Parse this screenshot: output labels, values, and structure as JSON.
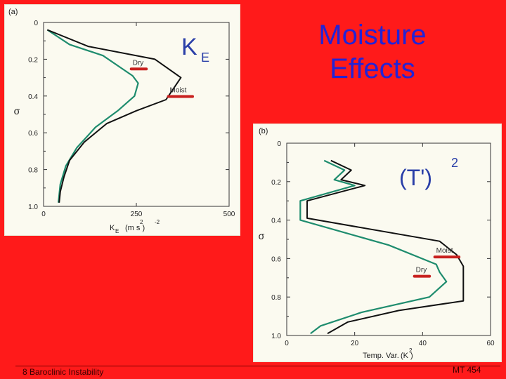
{
  "slide": {
    "title_line1": "Moisture",
    "title_line2": "Effects",
    "footer_left": "8 Baroclinic Instability",
    "footer_right": "MT 454"
  },
  "colors": {
    "background": "#ff1a1a",
    "title": "#2323d6",
    "panel": "#fbfaf0",
    "dry_line": "#1e8c6e",
    "moist_line": "#111111",
    "label_underline": "#c8201e",
    "handwriting": "#2a3fa8"
  },
  "chart_data": [
    {
      "type": "line",
      "panel_label": "(a)",
      "handwritten_label": "K",
      "handwritten_sub": "E",
      "xlabel": "K",
      "xlabel_sub": "E",
      "xlabel_units": "(m  s  )",
      "xlabel_exp1": "2",
      "xlabel_exp2": "-2",
      "ylabel": "σ",
      "xlim": [
        0,
        500
      ],
      "ylim": [
        0,
        1.0
      ],
      "y_inverted": true,
      "x_ticks": [
        0,
        250,
        500
      ],
      "x_tick_labels": [
        "0",
        "250",
        "500"
      ],
      "y_ticks": [
        0,
        0.2,
        0.4,
        0.6,
        0.8,
        1.0
      ],
      "y_tick_labels": [
        "0",
        "0.2",
        "0.4",
        "0.6",
        "0.8",
        "1.0"
      ],
      "series": [
        {
          "name": "Dry",
          "x": [
            10,
            70,
            160,
            240,
            255,
            245,
            200,
            140,
            90,
            60,
            45,
            40
          ],
          "y": [
            0.04,
            0.12,
            0.18,
            0.29,
            0.33,
            0.4,
            0.48,
            0.57,
            0.68,
            0.78,
            0.88,
            0.98
          ]
        },
        {
          "name": "Moist",
          "x": [
            10,
            120,
            300,
            370,
            330,
            250,
            170,
            110,
            70,
            55,
            45,
            42
          ],
          "y": [
            0.04,
            0.13,
            0.2,
            0.3,
            0.42,
            0.48,
            0.55,
            0.65,
            0.75,
            0.84,
            0.92,
            0.98
          ]
        }
      ],
      "annotations": [
        {
          "text": "Dry",
          "x": 240,
          "y": 0.23
        },
        {
          "text": "Moist",
          "x": 340,
          "y": 0.38
        }
      ]
    },
    {
      "type": "line",
      "panel_label": "(b)",
      "handwritten_label": "(T')",
      "handwritten_sup": "2",
      "xlabel": "Temp. Var.",
      "xlabel_units": "(K  )",
      "xlabel_exp": "2",
      "ylabel": "σ",
      "xlim": [
        0,
        60
      ],
      "ylim": [
        0,
        1.0
      ],
      "y_inverted": true,
      "x_ticks": [
        0,
        20,
        40,
        60
      ],
      "x_tick_labels": [
        "0",
        "20",
        "40",
        "60"
      ],
      "y_ticks": [
        0,
        0.2,
        0.4,
        0.6,
        0.8,
        1.0
      ],
      "y_tick_labels": [
        "0",
        "0.2",
        "0.4",
        "0.6",
        "0.8",
        "1.0"
      ],
      "series": [
        {
          "name": "Dry",
          "x": [
            11,
            17,
            14,
            20,
            4,
            4,
            30,
            44,
            45,
            47,
            42,
            22,
            10,
            7
          ],
          "y": [
            0.09,
            0.14,
            0.19,
            0.22,
            0.3,
            0.4,
            0.53,
            0.63,
            0.67,
            0.72,
            0.8,
            0.88,
            0.95,
            0.99
          ]
        },
        {
          "name": "Moist",
          "x": [
            13,
            19,
            16,
            23,
            6,
            6,
            45,
            50,
            52,
            52,
            33,
            18,
            12
          ],
          "y": [
            0.09,
            0.14,
            0.19,
            0.22,
            0.3,
            0.39,
            0.51,
            0.58,
            0.64,
            0.82,
            0.87,
            0.93,
            0.99
          ]
        }
      ],
      "annotations": [
        {
          "text": "Moist",
          "x": 44,
          "y": 0.57
        },
        {
          "text": "Dry",
          "x": 38,
          "y": 0.67
        }
      ]
    }
  ]
}
